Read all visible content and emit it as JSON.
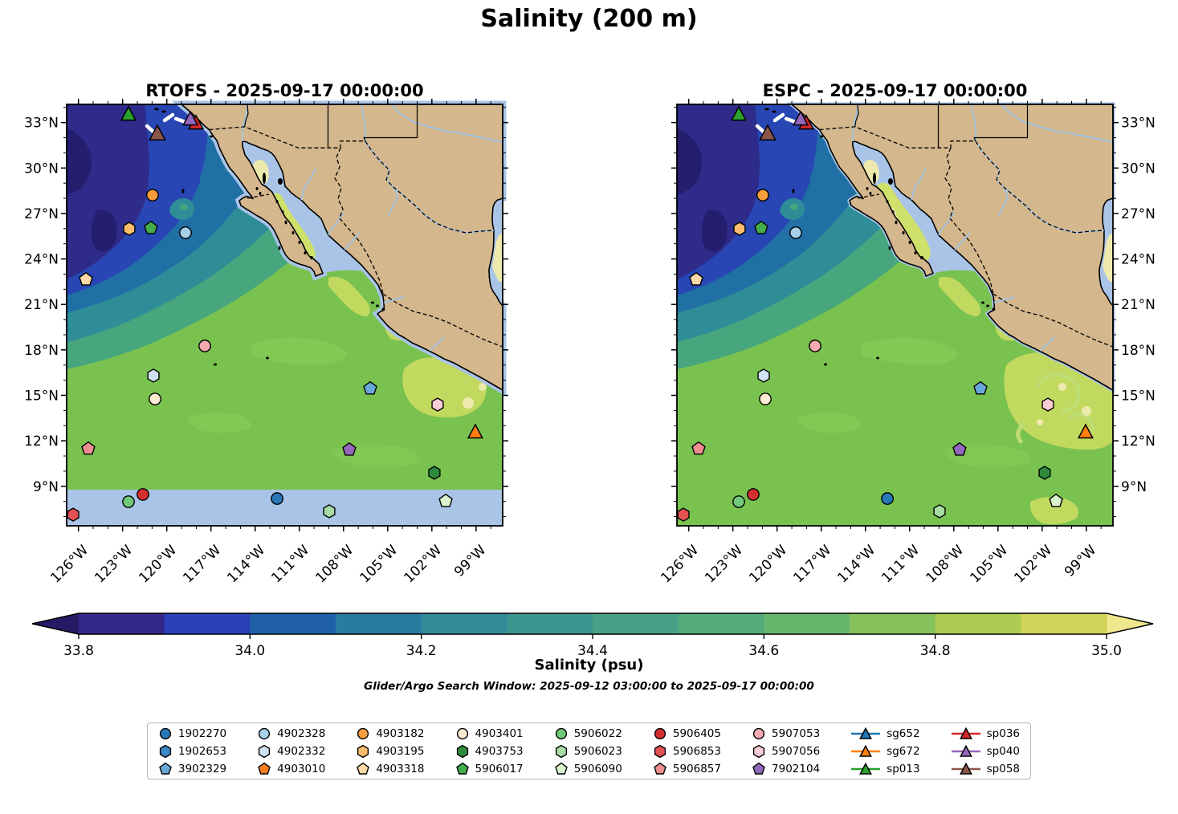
{
  "title": "Salinity (200 m)",
  "panels": [
    {
      "id": "rtofs",
      "title": "RTOFS - 2025-09-17 00:00:00"
    },
    {
      "id": "espc",
      "title": "ESPC - 2025-09-17 00:00:00"
    }
  ],
  "axes": {
    "lat_ticks": [
      {
        "value": 33,
        "label": "33°N"
      },
      {
        "value": 30,
        "label": "30°N"
      },
      {
        "value": 27,
        "label": "27°N"
      },
      {
        "value": 24,
        "label": "24°N"
      },
      {
        "value": 21,
        "label": "21°N"
      },
      {
        "value": 18,
        "label": "18°N"
      },
      {
        "value": 15,
        "label": "15°N"
      },
      {
        "value": 12,
        "label": "12°N"
      },
      {
        "value": 9,
        "label": "9°N"
      }
    ],
    "lon_ticks": [
      {
        "value": 126,
        "label": "126°W"
      },
      {
        "value": 123,
        "label": "123°W"
      },
      {
        "value": 120,
        "label": "120°W"
      },
      {
        "value": 117,
        "label": "117°W"
      },
      {
        "value": 114,
        "label": "114°W"
      },
      {
        "value": 111,
        "label": "111°W"
      },
      {
        "value": 108,
        "label": "108°W"
      },
      {
        "value": 105,
        "label": "105°W"
      },
      {
        "value": 102,
        "label": "102°W"
      },
      {
        "value": 99,
        "label": "99°W"
      }
    ]
  },
  "colorbar": {
    "label": "Salinity (psu)",
    "under_color": "#261a66",
    "over_color": "#f0e88e",
    "segment_colors": [
      "#332788",
      "#2b41b8",
      "#2060a8",
      "#2a7ba0",
      "#338b99",
      "#3d9590",
      "#47a186",
      "#55ac7b",
      "#66b66d",
      "#86c25c",
      "#abcb52",
      "#cfd35a"
    ],
    "ticks": [
      {
        "value": 33.8,
        "label": "33.8"
      },
      {
        "value": 34.0,
        "label": "34.0"
      },
      {
        "value": 34.2,
        "label": "34.2"
      },
      {
        "value": 34.4,
        "label": "34.4"
      },
      {
        "value": 34.6,
        "label": "34.6"
      },
      {
        "value": 34.8,
        "label": "34.8"
      },
      {
        "value": 35.0,
        "label": "35.0"
      }
    ]
  },
  "annotation": "Glider/Argo Search Window: 2025-09-12 03:00:00 to 2025-09-17 00:00:00",
  "legend": {
    "entries": [
      {
        "id": "1902270",
        "marker": "circle",
        "color": "#2878b8"
      },
      {
        "id": "1902653",
        "marker": "hexagon",
        "color": "#3a87c4"
      },
      {
        "id": "3902329",
        "marker": "pentagon",
        "color": "#68a8d8"
      },
      {
        "id": "4902328",
        "marker": "circle",
        "color": "#a8cfe8"
      },
      {
        "id": "4902332",
        "marker": "hexagon",
        "color": "#cfe3f2"
      },
      {
        "id": "4903010",
        "marker": "pentagon",
        "color": "#f57e20"
      },
      {
        "id": "4903182",
        "marker": "circle",
        "color": "#f89d3b"
      },
      {
        "id": "4903195",
        "marker": "hexagon",
        "color": "#fcbc6e"
      },
      {
        "id": "4903318",
        "marker": "pentagon",
        "color": "#fdd9a7"
      },
      {
        "id": "4903401",
        "marker": "circle",
        "color": "#fcebd2"
      },
      {
        "id": "4903753",
        "marker": "hexagon",
        "color": "#2e8b3d"
      },
      {
        "id": "5906017",
        "marker": "pentagon",
        "color": "#42ad49"
      },
      {
        "id": "5906022",
        "marker": "circle",
        "color": "#72c878"
      },
      {
        "id": "5906023",
        "marker": "hexagon",
        "color": "#a8dca4"
      },
      {
        "id": "5906090",
        "marker": "pentagon",
        "color": "#d9f2cc"
      },
      {
        "id": "5906405",
        "marker": "circle",
        "color": "#d42f2f"
      },
      {
        "id": "5906853",
        "marker": "hexagon",
        "color": "#e25252"
      },
      {
        "id": "5906857",
        "marker": "pentagon",
        "color": "#ee8e8e"
      },
      {
        "id": "5907053",
        "marker": "circle",
        "color": "#f5aab2"
      },
      {
        "id": "5907056",
        "marker": "hexagon",
        "color": "#f9cdd3"
      },
      {
        "id": "7902104",
        "marker": "pentagon",
        "color": "#9368bc"
      },
      {
        "id": "sg652",
        "marker": "glider",
        "color": "#1f77b4"
      },
      {
        "id": "sg672",
        "marker": "glider",
        "color": "#ff7f0e"
      },
      {
        "id": "sp013",
        "marker": "glider",
        "color": "#2ca02c"
      },
      {
        "id": "sp036",
        "marker": "glider",
        "color": "#d62728"
      },
      {
        "id": "sp040",
        "marker": "glider",
        "color": "#9467bd"
      },
      {
        "id": "sp058",
        "marker": "glider",
        "color": "#8c564b"
      }
    ]
  },
  "chart_data": {
    "type": "heatmap",
    "title": "Salinity (200 m)",
    "panels": [
      "RTOFS - 2025-09-17 00:00:00",
      "ESPC - 2025-09-17 00:00:00"
    ],
    "colorbar": {
      "label": "Salinity (psu)",
      "range": [
        33.8,
        35.0
      ],
      "ticks": [
        33.8,
        34.0,
        34.2,
        34.4,
        34.6,
        34.8,
        35.0
      ],
      "extend": "both"
    },
    "x_axis": {
      "ticks": [
        "126°W",
        "123°W",
        "120°W",
        "117°W",
        "114°W",
        "111°W",
        "108°W",
        "105°W",
        "102°W",
        "99°W"
      ]
    },
    "y_axis": {
      "ticks": [
        "33°N",
        "30°N",
        "27°N",
        "24°N",
        "21°N",
        "18°N",
        "15°N",
        "12°N",
        "9°N"
      ]
    },
    "field_description": "Salinity at 200 m depth: ~33.8 psu (dark indigo/blue) in the NW open Pacific grading southeastward through teal to ~34.7-35.0 psu (green/yellow) off southern Mexico; Gulf of California and coastal fringe shown on light-blue background",
    "platforms": [
      {
        "id": "5906853",
        "lon": -126.36,
        "lat": 7.13
      },
      {
        "id": "5906857",
        "lon": -125.33,
        "lat": 11.48
      },
      {
        "id": "4903318",
        "lon": -125.49,
        "lat": 22.65
      },
      {
        "id": "4903195",
        "lon": -122.55,
        "lat": 25.99
      },
      {
        "id": "5906017",
        "lon": -121.08,
        "lat": 26.04
      },
      {
        "id": "4903182",
        "lon": -120.97,
        "lat": 28.21
      },
      {
        "id": "4902328",
        "lon": -118.73,
        "lat": 25.73
      },
      {
        "id": "5907053",
        "lon": -117.42,
        "lat": 18.26
      },
      {
        "id": "4902332",
        "lon": -120.91,
        "lat": 16.3
      },
      {
        "id": "4903401",
        "lon": -120.8,
        "lat": 14.76
      },
      {
        "id": "5906405",
        "lon": -121.62,
        "lat": 8.46
      },
      {
        "id": "5906022",
        "lon": -122.6,
        "lat": 7.98
      },
      {
        "id": "1902270",
        "lon": -112.51,
        "lat": 8.19
      },
      {
        "id": "5906023",
        "lon": -108.97,
        "lat": 7.35
      },
      {
        "id": "5906090",
        "lon": -101.06,
        "lat": 8.03
      },
      {
        "id": "3902329",
        "lon": -106.19,
        "lat": 15.45
      },
      {
        "id": "7902104",
        "lon": -107.61,
        "lat": 11.42
      },
      {
        "id": "4903753",
        "lon": -101.83,
        "lat": 9.89
      },
      {
        "id": "5907056",
        "lon": -101.61,
        "lat": 14.39
      },
      {
        "id": "sg672",
        "lon": -99.05,
        "lat": 12.54,
        "size": 10
      },
      {
        "id": "sp036",
        "lon": -118.02,
        "lat": 32.93,
        "size": 10
      },
      {
        "id": "sp040",
        "lon": -118.4,
        "lat": 33.19,
        "size": 10
      },
      {
        "id": "sp013",
        "lon": -122.6,
        "lat": 33.51,
        "size": 10
      },
      {
        "id": "sp058",
        "lon": -120.64,
        "lat": 32.24,
        "size": 11
      }
    ],
    "glider_track_segments": [
      [
        [
          -121.35,
          32.77
        ],
        [
          -120.8,
          32.29
        ]
      ],
      [
        [
          -120.15,
          33.14
        ],
        [
          -119.6,
          33.51
        ]
      ],
      [
        [
          -119.38,
          33.25
        ],
        [
          -118.73,
          33.03
        ]
      ]
    ]
  }
}
